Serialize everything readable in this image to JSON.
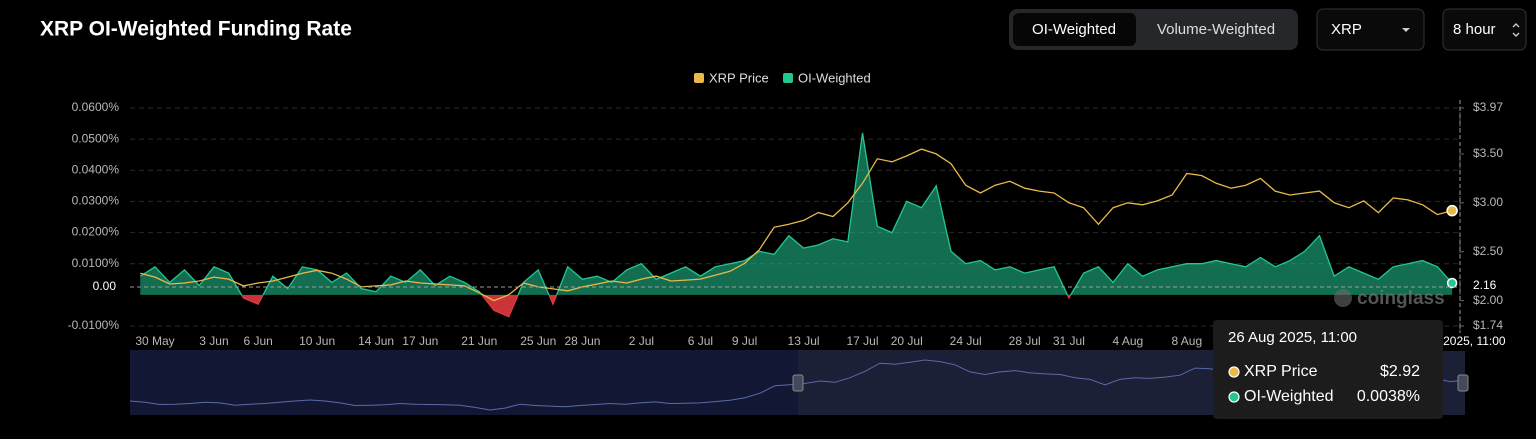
{
  "chart_data": {
    "type": "area-line",
    "title": "XRP OI-Weighted Funding Rate",
    "categories": [
      null,
      "30 May",
      null,
      null,
      null,
      "3 Jun",
      null,
      null,
      "6 Jun",
      null,
      null,
      null,
      "10 Jun",
      null,
      null,
      null,
      "14 Jun",
      null,
      null,
      "17 Jun",
      null,
      null,
      null,
      "21 Jun",
      null,
      null,
      null,
      "25 Jun",
      null,
      null,
      "28 Jun",
      null,
      null,
      null,
      "2 Jul",
      null,
      null,
      null,
      "6 Jul",
      null,
      null,
      "9 Jul",
      null,
      null,
      null,
      "13 Jul",
      null,
      null,
      null,
      "17 Jul",
      null,
      null,
      "20 Jul",
      null,
      null,
      null,
      "24 Jul",
      null,
      null,
      null,
      "28 Jul",
      null,
      null,
      "31 Jul",
      null,
      null,
      null,
      "4 Aug",
      null,
      null,
      null,
      "8 Aug",
      null,
      null,
      null,
      null,
      null,
      null,
      null,
      null,
      null,
      null,
      null,
      null,
      null,
      null,
      null,
      null,
      null,
      null
    ],
    "series": [
      {
        "name": "XRP Price",
        "color": "#e9b949",
        "axis": "y2",
        "values": [
          2.28,
          2.24,
          2.17,
          2.18,
          2.2,
          2.24,
          2.22,
          2.15,
          2.18,
          2.2,
          2.24,
          2.28,
          2.31,
          2.28,
          2.22,
          2.14,
          2.15,
          2.16,
          2.2,
          2.18,
          2.17,
          2.16,
          2.15,
          2.08,
          2.0,
          2.06,
          2.18,
          2.14,
          2.12,
          2.1,
          2.14,
          2.17,
          2.2,
          2.18,
          2.22,
          2.25,
          2.2,
          2.21,
          2.22,
          2.26,
          2.3,
          2.38,
          2.52,
          2.75,
          2.78,
          2.82,
          2.9,
          2.86,
          3.0,
          3.2,
          3.45,
          3.42,
          3.48,
          3.55,
          3.5,
          3.4,
          3.18,
          3.1,
          3.18,
          3.22,
          3.15,
          3.12,
          3.1,
          3.0,
          2.95,
          2.78,
          2.95,
          3.0,
          2.98,
          3.02,
          3.08,
          3.3,
          3.28,
          3.2,
          3.15,
          3.18,
          3.25,
          3.12,
          3.08,
          3.1,
          3.12,
          3.0,
          2.95,
          3.02,
          2.9,
          3.05,
          3.03,
          2.98,
          2.88,
          2.92
        ]
      },
      {
        "name": "OI-Weighted",
        "color": "#22c793",
        "negative_color": "#e03a3e",
        "values": [
          0.006,
          0.009,
          0.004,
          0.008,
          0.003,
          0.009,
          0.007,
          -0.001,
          -0.003,
          0.006,
          0.002,
          0.009,
          0.008,
          0.004,
          0.007,
          0.002,
          0.001,
          0.006,
          0.004,
          0.008,
          0.003,
          0.006,
          0.004,
          0.001,
          -0.005,
          -0.007,
          0.004,
          0.008,
          -0.003,
          0.009,
          0.005,
          0.006,
          0.004,
          0.008,
          0.01,
          0.005,
          0.007,
          0.009,
          0.006,
          0.009,
          0.01,
          0.011,
          0.014,
          0.013,
          0.019,
          0.015,
          0.016,
          0.018,
          0.017,
          0.052,
          0.022,
          0.02,
          0.03,
          0.028,
          0.035,
          0.014,
          0.01,
          0.011,
          0.008,
          0.009,
          0.007,
          0.008,
          0.009,
          -0.001,
          0.007,
          0.009,
          0.004,
          0.01,
          0.006,
          0.008,
          0.009,
          0.01,
          0.01,
          0.011,
          0.01,
          0.009,
          0.012,
          0.009,
          0.011,
          0.014,
          0.019,
          0.006,
          0.009,
          0.007,
          0.005,
          0.009,
          0.01,
          0.011,
          0.009,
          0.0038
        ]
      }
    ],
    "ylim": [
      -0.01,
      0.06
    ],
    "yticks": [
      {
        "value": -0.01,
        "label": "-0.0100%"
      },
      {
        "value": 0.01,
        "label": "0.0100%"
      },
      {
        "value": 0.02,
        "label": "0.0200%"
      },
      {
        "value": 0.03,
        "label": "0.0300%"
      },
      {
        "value": 0.04,
        "label": "0.0400%"
      },
      {
        "value": 0.05,
        "label": "0.0500%"
      },
      {
        "value": 0.06,
        "label": "0.0600%"
      }
    ],
    "y2lim": [
      1.74,
      3.97
    ],
    "y2ticks": [
      {
        "value": 1.74,
        "label": "$1.74"
      },
      {
        "value": 2.0,
        "label": "$2.00"
      },
      {
        "value": 2.5,
        "label": "$2.50"
      },
      {
        "value": 3.0,
        "label": "$3.00"
      },
      {
        "value": 3.5,
        "label": "$3.50"
      },
      {
        "value": 3.97,
        "label": "$3.97"
      }
    ],
    "grid": true,
    "legend": "top"
  },
  "controls": {
    "tabs": [
      "OI-Weighted",
      "Volume-Weighted"
    ],
    "coin": "XRP",
    "interval": "8 hour"
  },
  "tooltip": {
    "date": "26 Aug 2025, 11:00",
    "values": [
      "$2.92",
      "0.0038%"
    ]
  },
  "crosshair": {
    "y_label": "0.00",
    "y2_label": "2.16"
  },
  "watermark": "coinglass"
}
